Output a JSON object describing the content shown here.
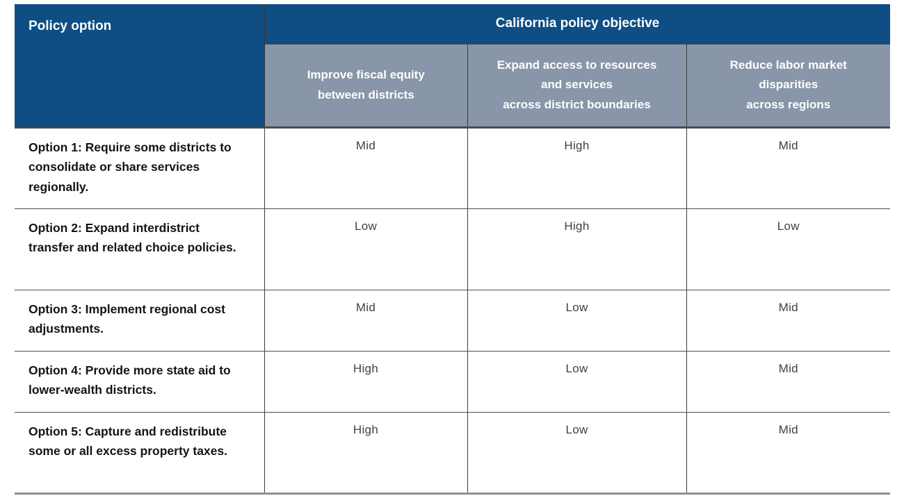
{
  "chart_data": {
    "type": "table",
    "corner_header": "Policy option",
    "group_header": "California policy objective",
    "columns": [
      "Improve fiscal equity\nbetween districts",
      "Expand access to resources\nand services\nacross district boundaries",
      "Reduce labor market\ndisparities\nacross regions"
    ],
    "rows": [
      {
        "option": "Option 1: Require some districts to consolidate or share services regionally.",
        "ratings": [
          "Mid",
          "High",
          "Mid"
        ]
      },
      {
        "option": "Option 2: Expand interdistrict transfer and related choice policies.",
        "ratings": [
          "Low",
          "High",
          "Low"
        ]
      },
      {
        "option": "Option 3: Implement regional cost adjustments.",
        "ratings": [
          "Mid",
          "Low",
          "Mid"
        ]
      },
      {
        "option": "Option 4: Provide more state aid to lower-wealth districts.",
        "ratings": [
          "High",
          "Low",
          "Mid"
        ]
      },
      {
        "option": "Option 5: Capture and redistribute some or all excess property taxes.",
        "ratings": [
          "High",
          "Low",
          "Mid"
        ]
      }
    ],
    "rating_scale": [
      "Low",
      "Mid",
      "High"
    ],
    "layout": {
      "legend_position": "none",
      "grid": "ruled-table"
    }
  },
  "colors": {
    "header_blue": "#0e4e85",
    "subheader_gray": "#8996a9",
    "header_text": "#ffffff",
    "option_text": "#141414",
    "rating_text": "#3f3f3f",
    "row_divider": "#4b4b4b",
    "bottom_border": "#8f8f8f"
  }
}
